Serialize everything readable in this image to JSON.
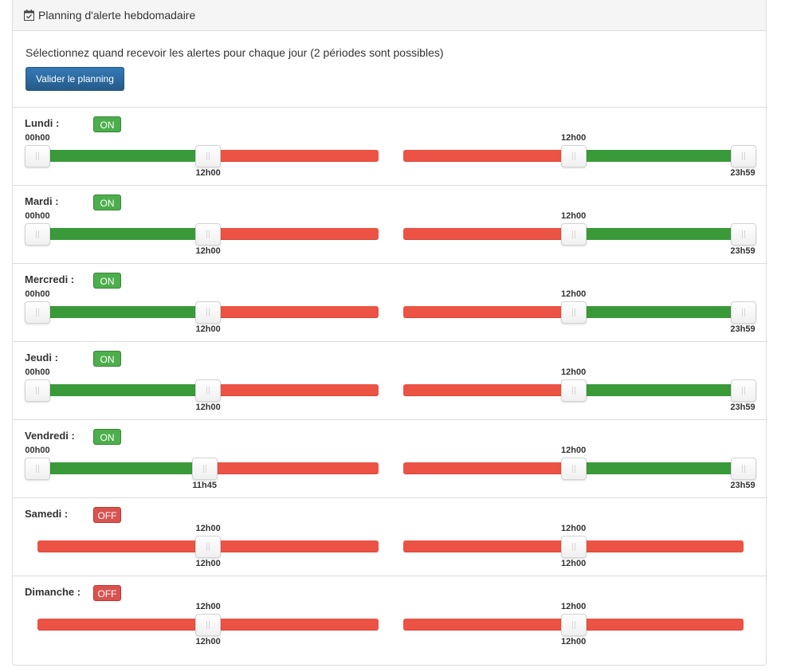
{
  "panel": {
    "title": "Planning d'alerte hebdomadaire",
    "icon": "calendar-check-icon"
  },
  "intro_text": "Sélectionnez quand recevoir les alertes pour chaque jour (2 périodes sont possibles)",
  "validate_button": "Valider le planning",
  "colors": {
    "on": "#4cae4c",
    "off": "#d9534f",
    "active_range": "#3a9a3a",
    "inactive_range": "#ec5344",
    "button": "#337ab7"
  },
  "days": [
    {
      "name": "Lundi :",
      "status": "ON",
      "s1": {
        "low": "00h00",
        "high": "12h00"
      },
      "s2": {
        "low": "12h00",
        "high": "23h59"
      }
    },
    {
      "name": "Mardi :",
      "status": "ON",
      "s1": {
        "low": "00h00",
        "high": "12h00"
      },
      "s2": {
        "low": "12h00",
        "high": "23h59"
      }
    },
    {
      "name": "Mercredi :",
      "status": "ON",
      "s1": {
        "low": "00h00",
        "high": "12h00"
      },
      "s2": {
        "low": "12h00",
        "high": "23h59"
      }
    },
    {
      "name": "Jeudi :",
      "status": "ON",
      "s1": {
        "low": "00h00",
        "high": "12h00"
      },
      "s2": {
        "low": "12h00",
        "high": "23h59"
      }
    },
    {
      "name": "Vendredi :",
      "status": "ON",
      "s1": {
        "low": "00h00",
        "high": "11h45"
      },
      "s2": {
        "low": "12h00",
        "high": "23h59"
      }
    },
    {
      "name": "Samedi :",
      "status": "OFF",
      "s1": {
        "low": "12h00",
        "high": "12h00"
      },
      "s2": {
        "low": "12h00",
        "high": "12h00"
      }
    },
    {
      "name": "Dimanche :",
      "status": "OFF",
      "s1": {
        "low": "12h00",
        "high": "12h00"
      },
      "s2": {
        "low": "12h00",
        "high": "12h00"
      }
    }
  ]
}
